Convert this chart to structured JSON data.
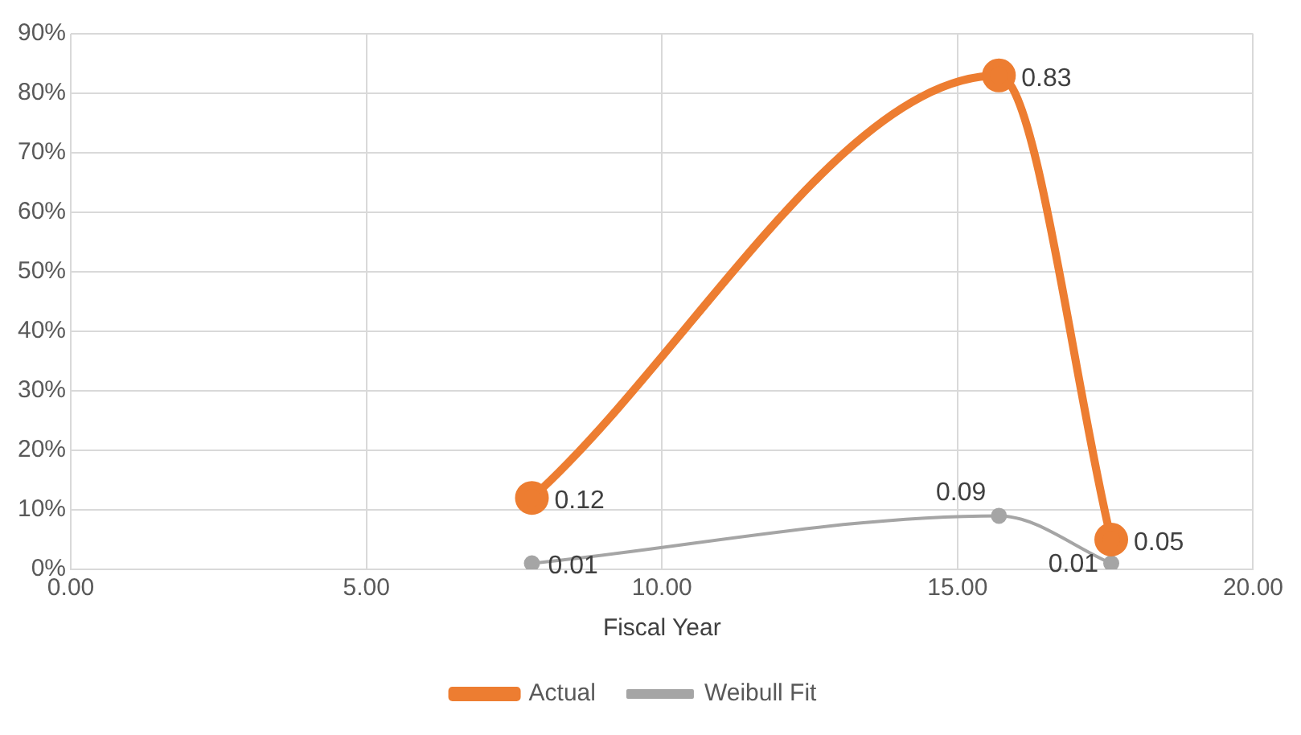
{
  "chart_data": {
    "type": "line",
    "xlabel": "Fiscal Year",
    "xlim": [
      0,
      20
    ],
    "xticks": [
      {
        "value": 0,
        "label": "0.00"
      },
      {
        "value": 5,
        "label": "5.00"
      },
      {
        "value": 10,
        "label": "10.00"
      },
      {
        "value": 15,
        "label": "15.00"
      },
      {
        "value": 20,
        "label": "20.00"
      }
    ],
    "ylim": [
      0,
      0.9
    ],
    "yticks": [
      {
        "value": 0,
        "label": "0%"
      },
      {
        "value": 0.1,
        "label": "10%"
      },
      {
        "value": 0.2,
        "label": "20%"
      },
      {
        "value": 0.3,
        "label": "30%"
      },
      {
        "value": 0.4,
        "label": "40%"
      },
      {
        "value": 0.5,
        "label": "50%"
      },
      {
        "value": 0.6,
        "label": "60%"
      },
      {
        "value": 0.7,
        "label": "70%"
      },
      {
        "value": 0.8,
        "label": "80%"
      },
      {
        "value": 0.9,
        "label": "90%"
      }
    ],
    "x": [
      7.8,
      15.7,
      17.6
    ],
    "series": [
      {
        "name": "Actual",
        "color": "#ed7d31",
        "values": [
          0.12,
          0.83,
          0.05
        ]
      },
      {
        "name": "Weibull Fit",
        "color": "#a5a5a5",
        "values": [
          0.01,
          0.09,
          0.01
        ]
      }
    ],
    "data_labels": true,
    "grid": true,
    "legend": "bottom",
    "marker": "circle"
  }
}
